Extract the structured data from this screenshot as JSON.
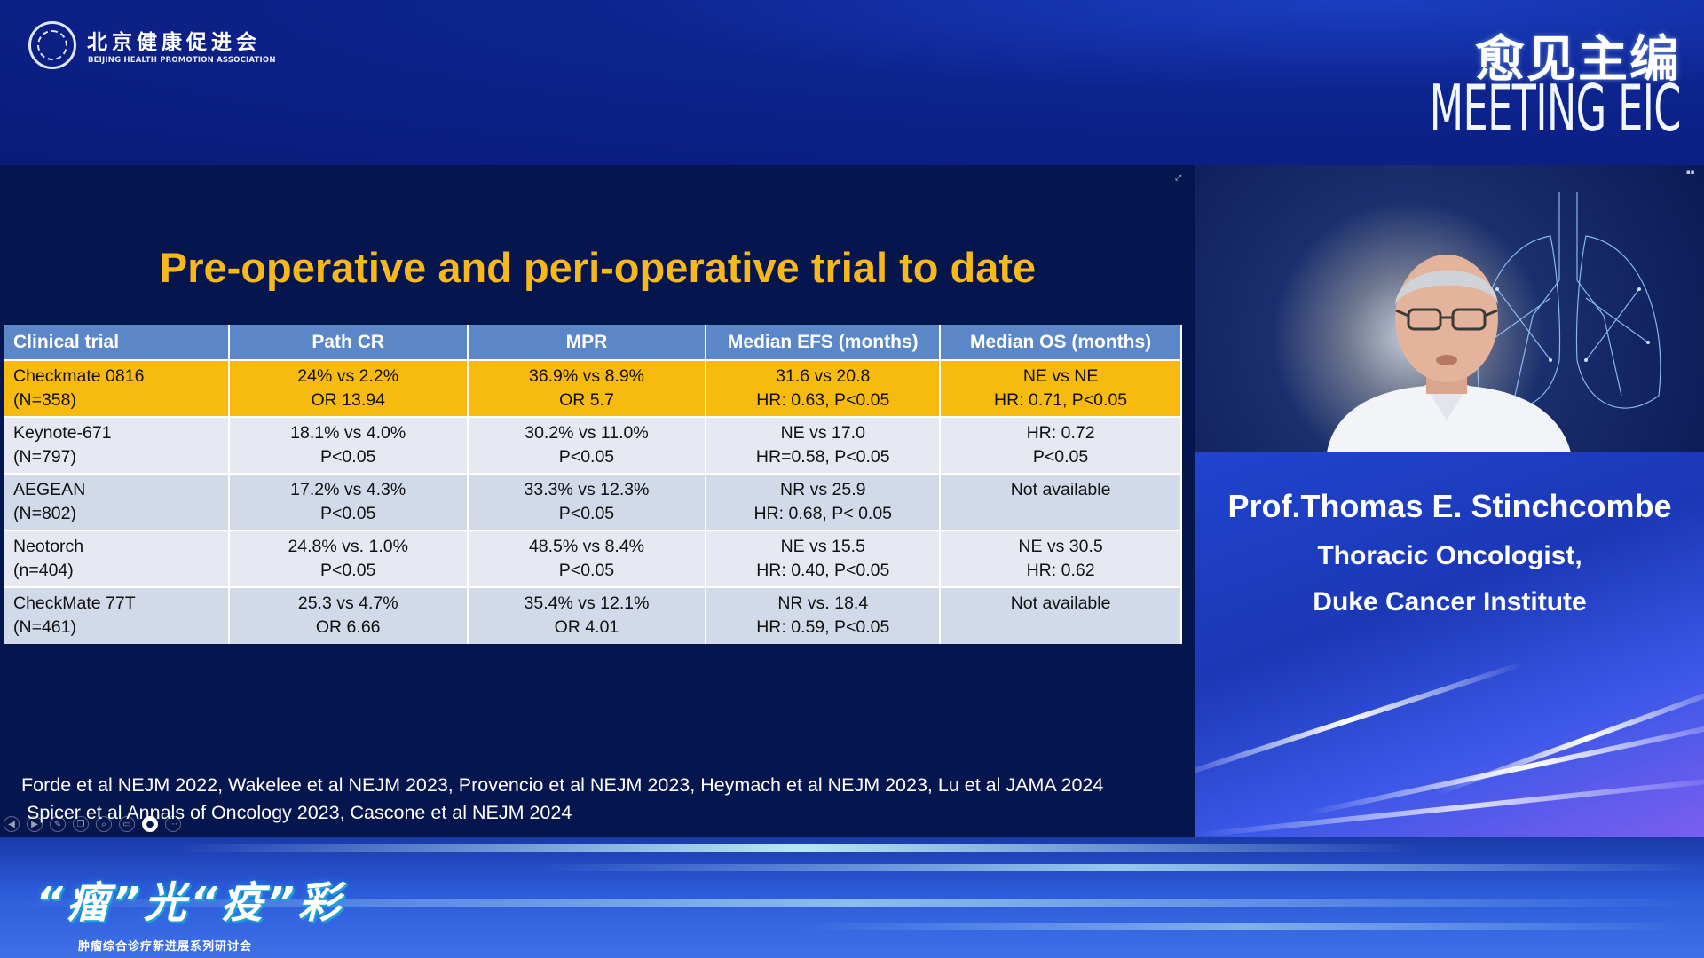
{
  "header": {
    "org_name_cn": "北京健康促进会",
    "org_name_en": "BEIJING HEALTH PROMOTION ASSOCIATION",
    "brand_cn": "愈见主编",
    "brand_en": "MEETING EIC"
  },
  "slide": {
    "title": "Pre-operative and peri-operative trial to date",
    "table": {
      "headers": [
        "Clinical trial",
        "Path CR",
        "MPR",
        "Median EFS (months)",
        "Median OS (months)"
      ],
      "rows": [
        {
          "trial": "Checkmate 0816",
          "n": "(N=358)",
          "pcr1": "24% vs 2.2%",
          "pcr2": "OR 13.94",
          "mpr1": "36.9% vs 8.9%",
          "mpr2": "OR 5.7",
          "efs1": "31.6 vs 20.8",
          "efs2": "HR: 0.63, P<0.05",
          "os1": "NE vs NE",
          "os2": "HR: 0.71, P<0.05"
        },
        {
          "trial": "Keynote-671",
          "n": "(N=797)",
          "pcr1": "18.1% vs 4.0%",
          "pcr2": "P<0.05",
          "mpr1": "30.2% vs 11.0%",
          "mpr2": "P<0.05",
          "efs1": "NE vs 17.0",
          "efs2": "HR=0.58, P<0.05",
          "os1": "HR: 0.72",
          "os2": "P<0.05"
        },
        {
          "trial": "AEGEAN",
          "n": "(N=802)",
          "pcr1": "17.2% vs 4.3%",
          "pcr2": "P<0.05",
          "mpr1": "33.3% vs 12.3%",
          "mpr2": "P<0.05",
          "efs1": "NR vs 25.9",
          "efs2": "HR: 0.68, P< 0.05",
          "os1": "Not available",
          "os2": ""
        },
        {
          "trial": "Neotorch",
          "n": "(n=404)",
          "pcr1": "24.8% vs. 1.0%",
          "pcr2": "P<0.05",
          "mpr1": "48.5% vs 8.4%",
          "mpr2": "P<0.05",
          "efs1": "NE vs 15.5",
          "efs2": "HR: 0.40, P<0.05",
          "os1": "NE vs 30.5",
          "os2": "HR: 0.62"
        },
        {
          "trial": "CheckMate 77T",
          "n": "(N=461)",
          "pcr1": "25.3 vs 4.7%",
          "pcr2": "OR 6.66",
          "mpr1": "35.4% vs 12.1%",
          "mpr2": "OR 4.01",
          "efs1": "NR vs. 18.4",
          "efs2": "HR: 0.59, P<0.05",
          "os1": "Not available",
          "os2": ""
        }
      ]
    },
    "references": [
      "Forde et al NEJM 2022, Wakelee et al NEJM 2023, Provencio et al NEJM 2023, Heymach et al NEJM 2023, Lu et al JAMA 2024",
      "Spicer et al Annals of Oncology 2023, Cascone et al NEJM 2024"
    ]
  },
  "player_controls": [
    "prev-icon",
    "play-icon",
    "pen-icon",
    "copy-icon",
    "zoom-icon",
    "subtitle-icon",
    "camera-icon",
    "more-icon"
  ],
  "speaker": {
    "name": "Prof.Thomas E. Stinchcombe",
    "role": "Thoracic Oncologist,",
    "institution": "Duke Cancer Institute"
  },
  "footer": {
    "event_cn": "“瘤”光“疫”彩",
    "event_sub": "肿瘤综合诊疗新进展系列研讨会"
  },
  "colors": {
    "title_gold": "#f7b91a",
    "highlight_row": "#f7bb0f",
    "header_blue": "#5b87c8",
    "slide_bg": "#05164f"
  }
}
